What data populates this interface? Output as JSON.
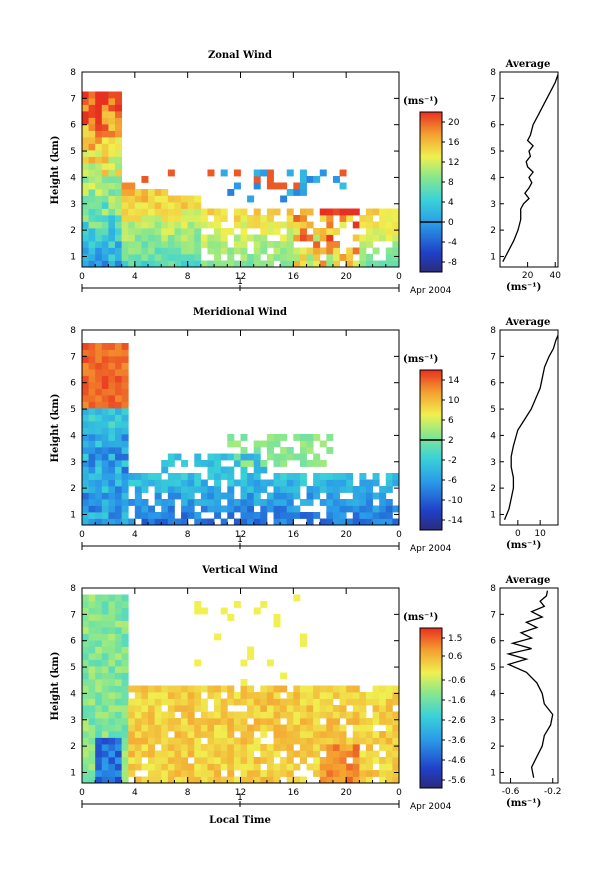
{
  "chart_data": [
    {
      "type": "heatmap",
      "title": "Zonal Wind",
      "ylabel": "Height (km)",
      "xlabel": "",
      "units": "(ms⁻¹)",
      "x_ticks": [
        "0",
        "4",
        "8",
        "12",
        "16",
        "20",
        "0"
      ],
      "y_ticks": [
        "1",
        "2",
        "3",
        "4",
        "5",
        "6",
        "7",
        "8"
      ],
      "xlim": [
        0,
        24
      ],
      "ylim": [
        0.6,
        8
      ],
      "date_day": "1",
      "date_label": "Apr 2004",
      "colorbar": {
        "ticks": [
          "20",
          "16",
          "12",
          "8",
          "4",
          "0",
          "-4",
          "-8"
        ],
        "range": [
          -10,
          22
        ],
        "marked_level": 0
      },
      "average_panel": {
        "title": "Average",
        "xlabel": "(ms⁻¹)",
        "x_ticks": [
          "20",
          "40"
        ],
        "xlim": [
          0,
          42
        ],
        "profile": {
          "height": [
            0.8,
            1.2,
            1.6,
            2.0,
            2.4,
            2.8,
            3.0,
            3.2,
            3.4,
            3.6,
            3.8,
            4.0,
            4.2,
            4.4,
            4.6,
            4.8,
            5.0,
            5.2,
            5.4,
            5.6,
            6.0,
            6.4,
            6.8,
            7.2,
            7.6,
            7.9
          ],
          "value": [
            2,
            6,
            10,
            13,
            15,
            15,
            17,
            21,
            18,
            21,
            23,
            21,
            24,
            20,
            19,
            22,
            21,
            24,
            20,
            22,
            24,
            28,
            32,
            36,
            40,
            42
          ]
        }
      }
    },
    {
      "type": "heatmap",
      "title": "Meridional Wind",
      "ylabel": "Height (km)",
      "xlabel": "",
      "units": "(ms⁻¹)",
      "x_ticks": [
        "0",
        "4",
        "8",
        "12",
        "16",
        "20",
        "0"
      ],
      "y_ticks": [
        "1",
        "2",
        "3",
        "4",
        "5",
        "6",
        "7",
        "8"
      ],
      "xlim": [
        0,
        24
      ],
      "ylim": [
        0.6,
        8
      ],
      "date_day": "1",
      "date_label": "Apr 2004",
      "colorbar": {
        "ticks": [
          "14",
          "10",
          "6",
          "2",
          "-2",
          "-6",
          "-10",
          "-14"
        ],
        "range": [
          -16,
          16
        ],
        "marked_level": 2
      },
      "average_panel": {
        "title": "Average",
        "xlabel": "(ms⁻¹)",
        "x_ticks": [
          "0",
          "10"
        ],
        "xlim": [
          -8,
          18
        ],
        "profile": {
          "height": [
            0.8,
            1.2,
            1.6,
            2.0,
            2.4,
            2.8,
            3.2,
            3.6,
            3.9,
            4.2,
            4.6,
            5.0,
            5.4,
            5.8,
            6.2,
            6.6,
            7.0,
            7.3,
            7.6,
            7.8
          ],
          "value": [
            -6,
            -4,
            -3,
            -2,
            -2,
            -3,
            -3,
            -2,
            -1,
            0,
            3,
            6,
            8,
            10,
            11,
            12,
            14,
            16,
            17,
            18
          ]
        }
      }
    },
    {
      "type": "heatmap",
      "title": "Vertical Wind",
      "ylabel": "Height (km)",
      "xlabel": "Local Time",
      "units": "(ms⁻¹)",
      "x_ticks": [
        "0",
        "4",
        "8",
        "12",
        "16",
        "20",
        "0"
      ],
      "y_ticks": [
        "1",
        "2",
        "3",
        "4",
        "5",
        "6",
        "7",
        "8"
      ],
      "xlim": [
        0,
        24
      ],
      "ylim": [
        0.6,
        8
      ],
      "date_day": "1",
      "date_label": "Apr 2004",
      "colorbar": {
        "ticks": [
          "1.5",
          "0.6",
          "-0.6",
          "-1.6",
          "-2.6",
          "-3.6",
          "-4.6",
          "-5.6"
        ],
        "range": [
          -6.0,
          2.0
        ],
        "marked_level": null
      },
      "average_panel": {
        "title": "Average",
        "xlabel": "(ms⁻¹)",
        "x_ticks": [
          "-0.6",
          "-0.2"
        ],
        "xlim": [
          -0.7,
          -0.15
        ],
        "profile": {
          "height": [
            0.8,
            1.2,
            1.6,
            2.0,
            2.4,
            2.8,
            3.2,
            3.6,
            4.0,
            4.4,
            4.8,
            5.1,
            5.3,
            5.5,
            5.7,
            5.9,
            6.1,
            6.3,
            6.5,
            6.7,
            6.9,
            7.1,
            7.3,
            7.5,
            7.7,
            7.9
          ],
          "value": [
            -0.38,
            -0.4,
            -0.35,
            -0.3,
            -0.28,
            -0.22,
            -0.2,
            -0.28,
            -0.3,
            -0.35,
            -0.45,
            -0.62,
            -0.45,
            -0.62,
            -0.4,
            -0.58,
            -0.4,
            -0.5,
            -0.35,
            -0.45,
            -0.3,
            -0.4,
            -0.28,
            -0.32,
            -0.26,
            -0.25
          ]
        }
      }
    }
  ]
}
